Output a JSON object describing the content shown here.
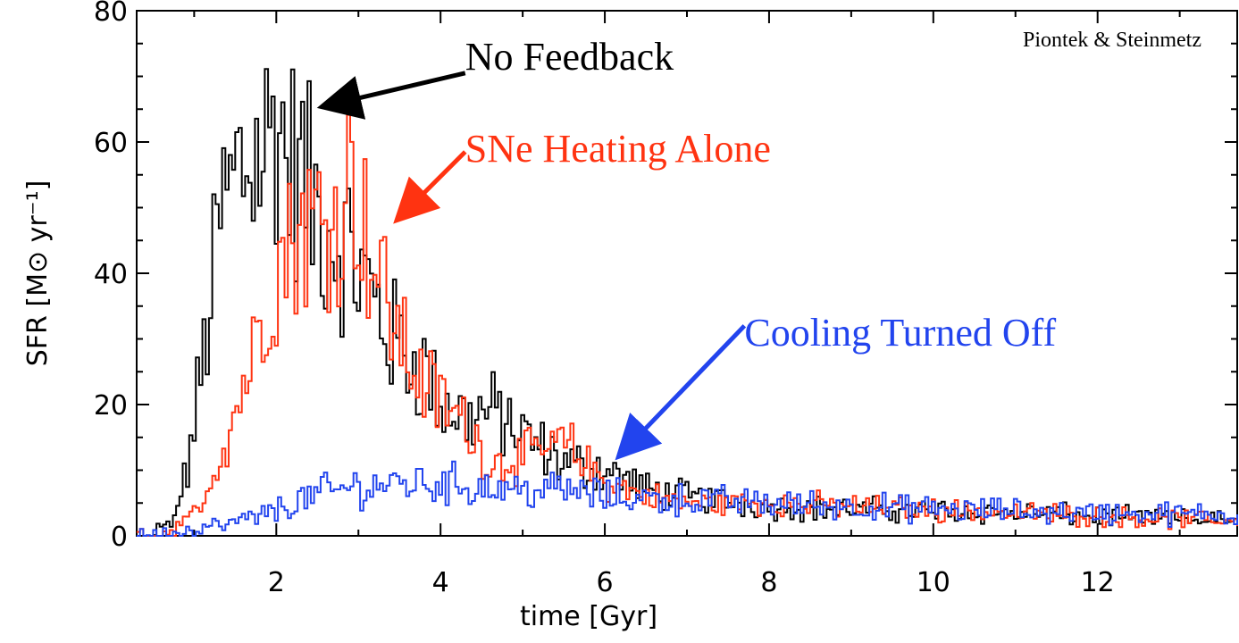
{
  "chart_data": {
    "type": "line",
    "xlabel": "time [Gyr]",
    "ylabel": "SFR [M⊙ yr⁻¹]",
    "xlim": [
      0.3,
      13.7
    ],
    "ylim": [
      0,
      80
    ],
    "xticks": [
      2,
      4,
      6,
      8,
      10,
      12
    ],
    "yticks": [
      0,
      20,
      40,
      60,
      80
    ],
    "credit": "Piontek & Steinmetz",
    "series": [
      {
        "name": "No Feedback",
        "color": "#000000",
        "x": [
          0.5,
          0.7,
          0.9,
          1.1,
          1.3,
          1.5,
          1.7,
          1.9,
          2.0,
          2.1,
          2.3,
          2.5,
          2.7,
          2.9,
          3.0,
          3.2,
          3.4,
          3.6,
          3.8,
          4.0,
          4.3,
          4.6,
          5.0,
          5.5,
          6.0,
          6.5,
          7.0,
          8.0,
          9.0,
          10.0,
          11.0,
          12.0,
          13.0,
          13.7
        ],
        "y": [
          0.5,
          1.5,
          10,
          28,
          48,
          55,
          58,
          60,
          65,
          57,
          55,
          49,
          46,
          43,
          40,
          35,
          30,
          27,
          25,
          20,
          18,
          19,
          15,
          11,
          10,
          7,
          6,
          4.5,
          4,
          3.8,
          3.5,
          3,
          2.5,
          2.5
        ]
      },
      {
        "name": "SNe Heating Alone",
        "color": "#ff3311",
        "x": [
          0.3,
          0.6,
          0.9,
          1.1,
          1.3,
          1.5,
          1.7,
          1.9,
          2.1,
          2.3,
          2.5,
          2.7,
          2.9,
          3.0,
          3.2,
          3.4,
          3.6,
          3.8,
          4.0,
          4.3,
          4.6,
          5.0,
          5.5,
          6.0,
          6.5,
          7.0,
          8.0,
          9.0,
          10.0,
          11.0,
          12.0,
          13.0,
          13.7
        ],
        "y": [
          0,
          0.3,
          2,
          6,
          12,
          20,
          28,
          38,
          44,
          47,
          48,
          48,
          55,
          50,
          40,
          33,
          27,
          23,
          20,
          17,
          11,
          12,
          14,
          8,
          6,
          5,
          5,
          4.5,
          4,
          3.5,
          3,
          2.5,
          2.5
        ]
      },
      {
        "name": "Cooling Turned Off",
        "color": "#2244ee",
        "x": [
          0.3,
          0.6,
          1.0,
          1.5,
          2.0,
          2.5,
          3.0,
          3.5,
          4.0,
          4.5,
          5.0,
          5.5,
          6.0,
          7.0,
          8.0,
          9.0,
          10.0,
          11.0,
          12.0,
          13.0,
          13.7
        ],
        "y": [
          0,
          0.3,
          1,
          2,
          4,
          6.5,
          7.5,
          8,
          8,
          7.5,
          7,
          7,
          6,
          5.5,
          5,
          4.5,
          4,
          3.8,
          3.5,
          3.3,
          3.2
        ]
      }
    ],
    "annotations": [
      {
        "text": "No Feedback",
        "color": "#000000",
        "text_x": 4.3,
        "text_y": 71,
        "arrow_from": [
          4.3,
          70.5
        ],
        "arrow_to": [
          2.6,
          65.5
        ]
      },
      {
        "text": "SNe Heating Alone",
        "color": "#ff3311",
        "text_x": 4.3,
        "text_y": 57,
        "arrow_from": [
          4.3,
          58.5
        ],
        "arrow_to": [
          3.5,
          48.5
        ]
      },
      {
        "text": "Cooling Turned Off",
        "color": "#2244ee",
        "text_x": 7.7,
        "text_y": 29,
        "arrow_from": [
          7.7,
          32
        ],
        "arrow_to": [
          6.2,
          12.5
        ]
      }
    ]
  }
}
